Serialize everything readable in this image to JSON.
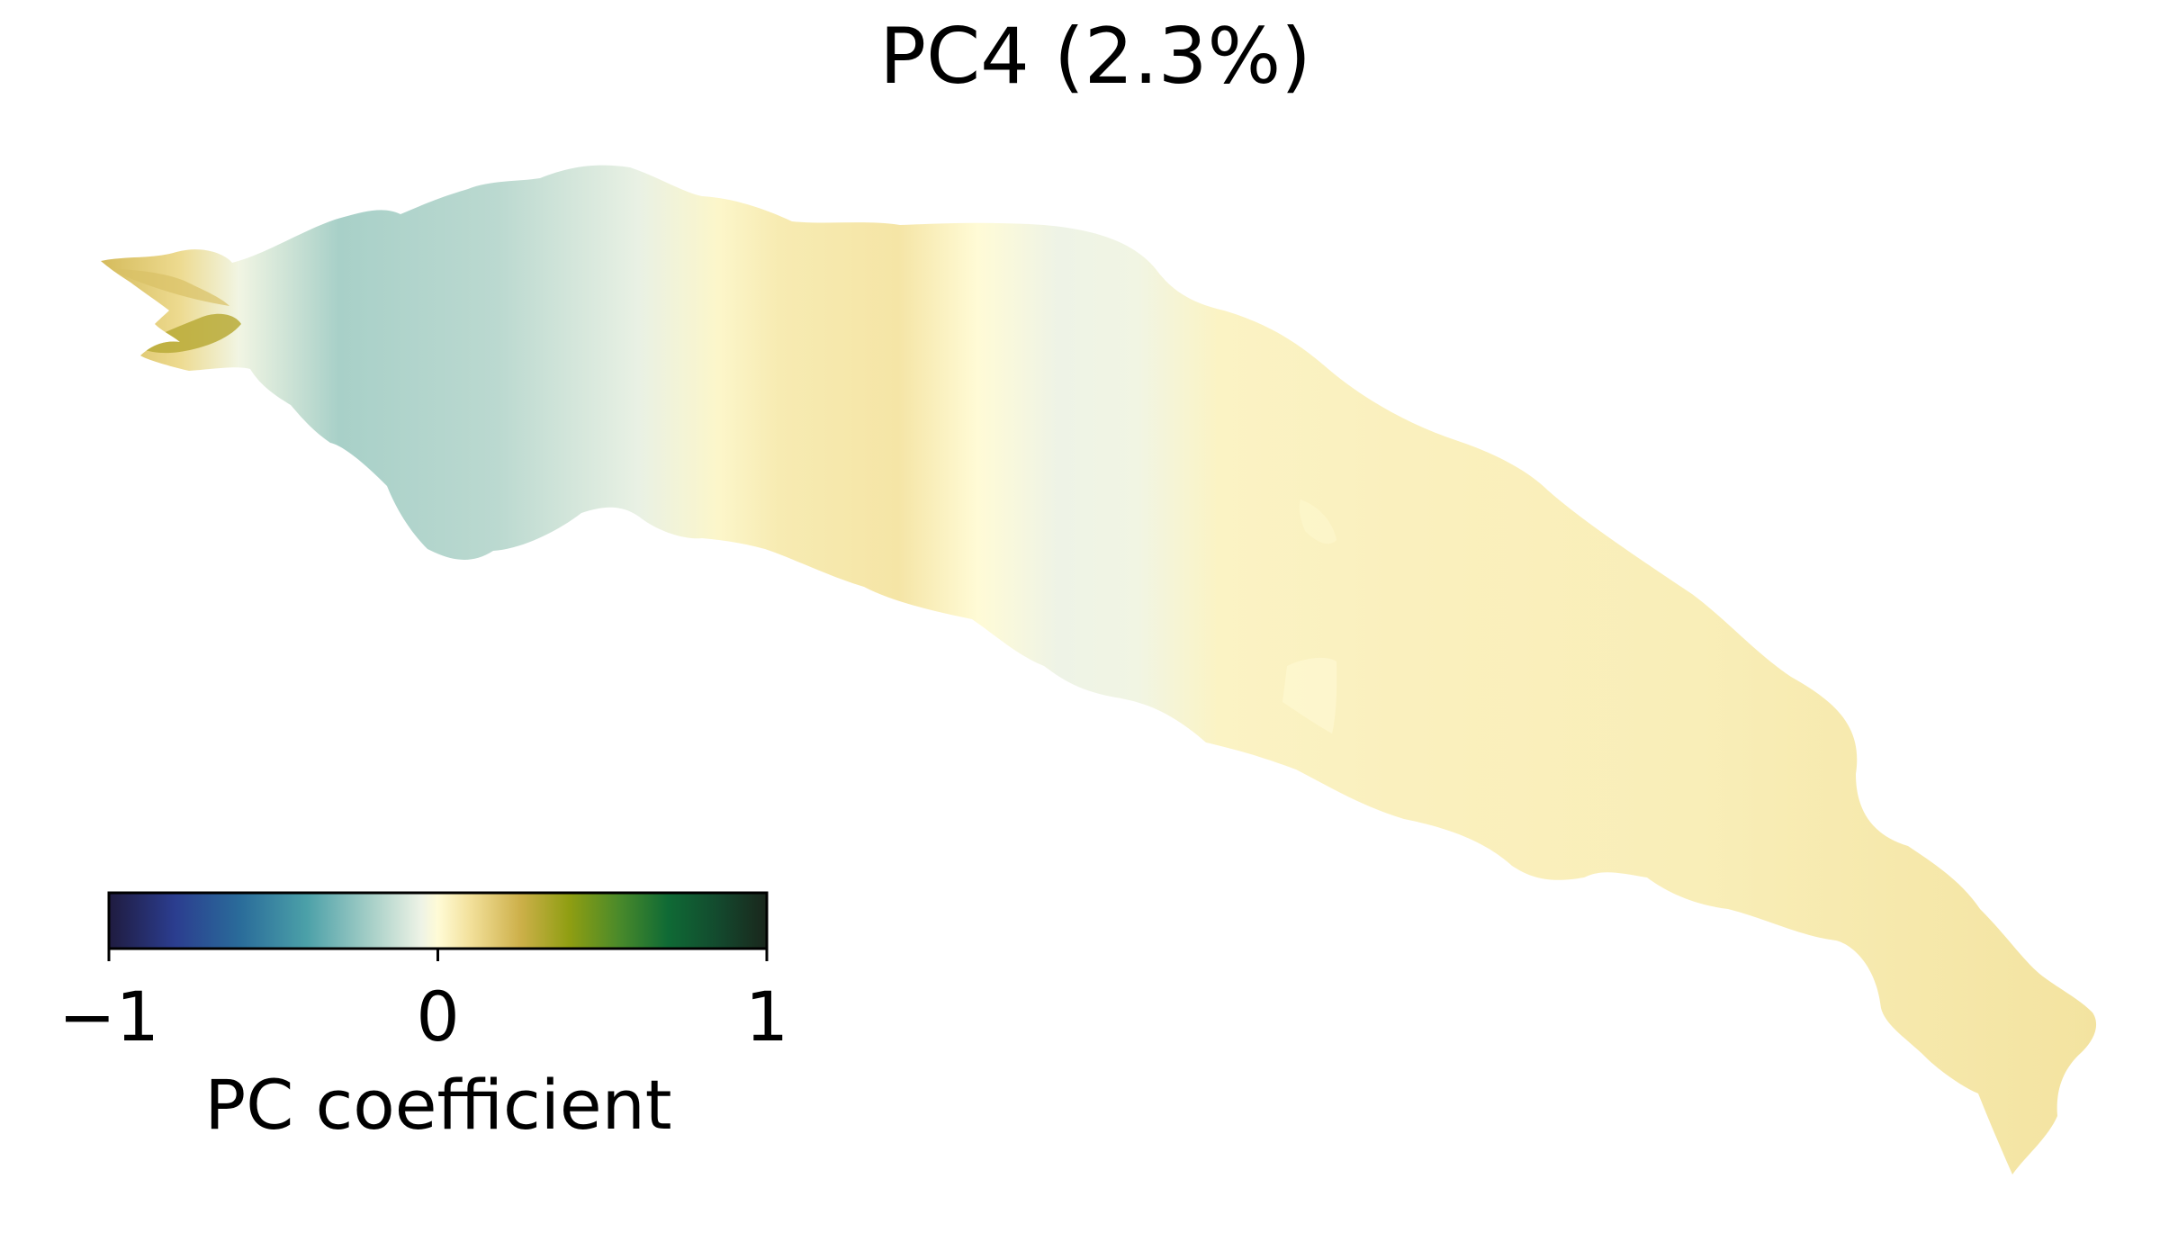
{
  "chart_data": {
    "type": "heatmap",
    "title": "PC4 (2.3%)",
    "colorbar": {
      "label": "PC coefficient",
      "range": [
        -1,
        1
      ],
      "ticks": [
        {
          "value": -1,
          "label": "−1"
        },
        {
          "value": 0,
          "label": "0"
        },
        {
          "value": 1,
          "label": "1"
        }
      ],
      "stops": [
        {
          "value": -1.0,
          "color": "#1f1b3f"
        },
        {
          "value": -0.8,
          "color": "#2b3d8f"
        },
        {
          "value": -0.6,
          "color": "#2a6c9a"
        },
        {
          "value": -0.4,
          "color": "#4ba0a8"
        },
        {
          "value": -0.2,
          "color": "#a8d0c8"
        },
        {
          "value": -0.05,
          "color": "#eef3e6"
        },
        {
          "value": 0.0,
          "color": "#fffbd6"
        },
        {
          "value": 0.1,
          "color": "#f2e09a"
        },
        {
          "value": 0.25,
          "color": "#cdb04a"
        },
        {
          "value": 0.4,
          "color": "#8f9e12"
        },
        {
          "value": 0.55,
          "color": "#4a8a2a"
        },
        {
          "value": 0.7,
          "color": "#0f6a35"
        },
        {
          "value": 0.85,
          "color": "#134a2e"
        },
        {
          "value": 1.0,
          "color": "#1a261c"
        }
      ]
    },
    "map_coefficients": [
      {
        "position": 0.0,
        "value": 0.22
      },
      {
        "position": 0.04,
        "value": 0.12
      },
      {
        "position": 0.07,
        "value": -0.04
      },
      {
        "position": 0.12,
        "value": -0.2
      },
      {
        "position": 0.2,
        "value": -0.16
      },
      {
        "position": 0.27,
        "value": -0.06
      },
      {
        "position": 0.31,
        "value": 0.02
      },
      {
        "position": 0.34,
        "value": 0.06
      },
      {
        "position": 0.4,
        "value": 0.08
      },
      {
        "position": 0.44,
        "value": 0.0
      },
      {
        "position": 0.48,
        "value": -0.05
      },
      {
        "position": 0.52,
        "value": -0.04
      },
      {
        "position": 0.56,
        "value": 0.03
      },
      {
        "position": 0.65,
        "value": 0.04
      },
      {
        "position": 0.8,
        "value": 0.05
      },
      {
        "position": 1.0,
        "value": 0.09
      }
    ]
  }
}
